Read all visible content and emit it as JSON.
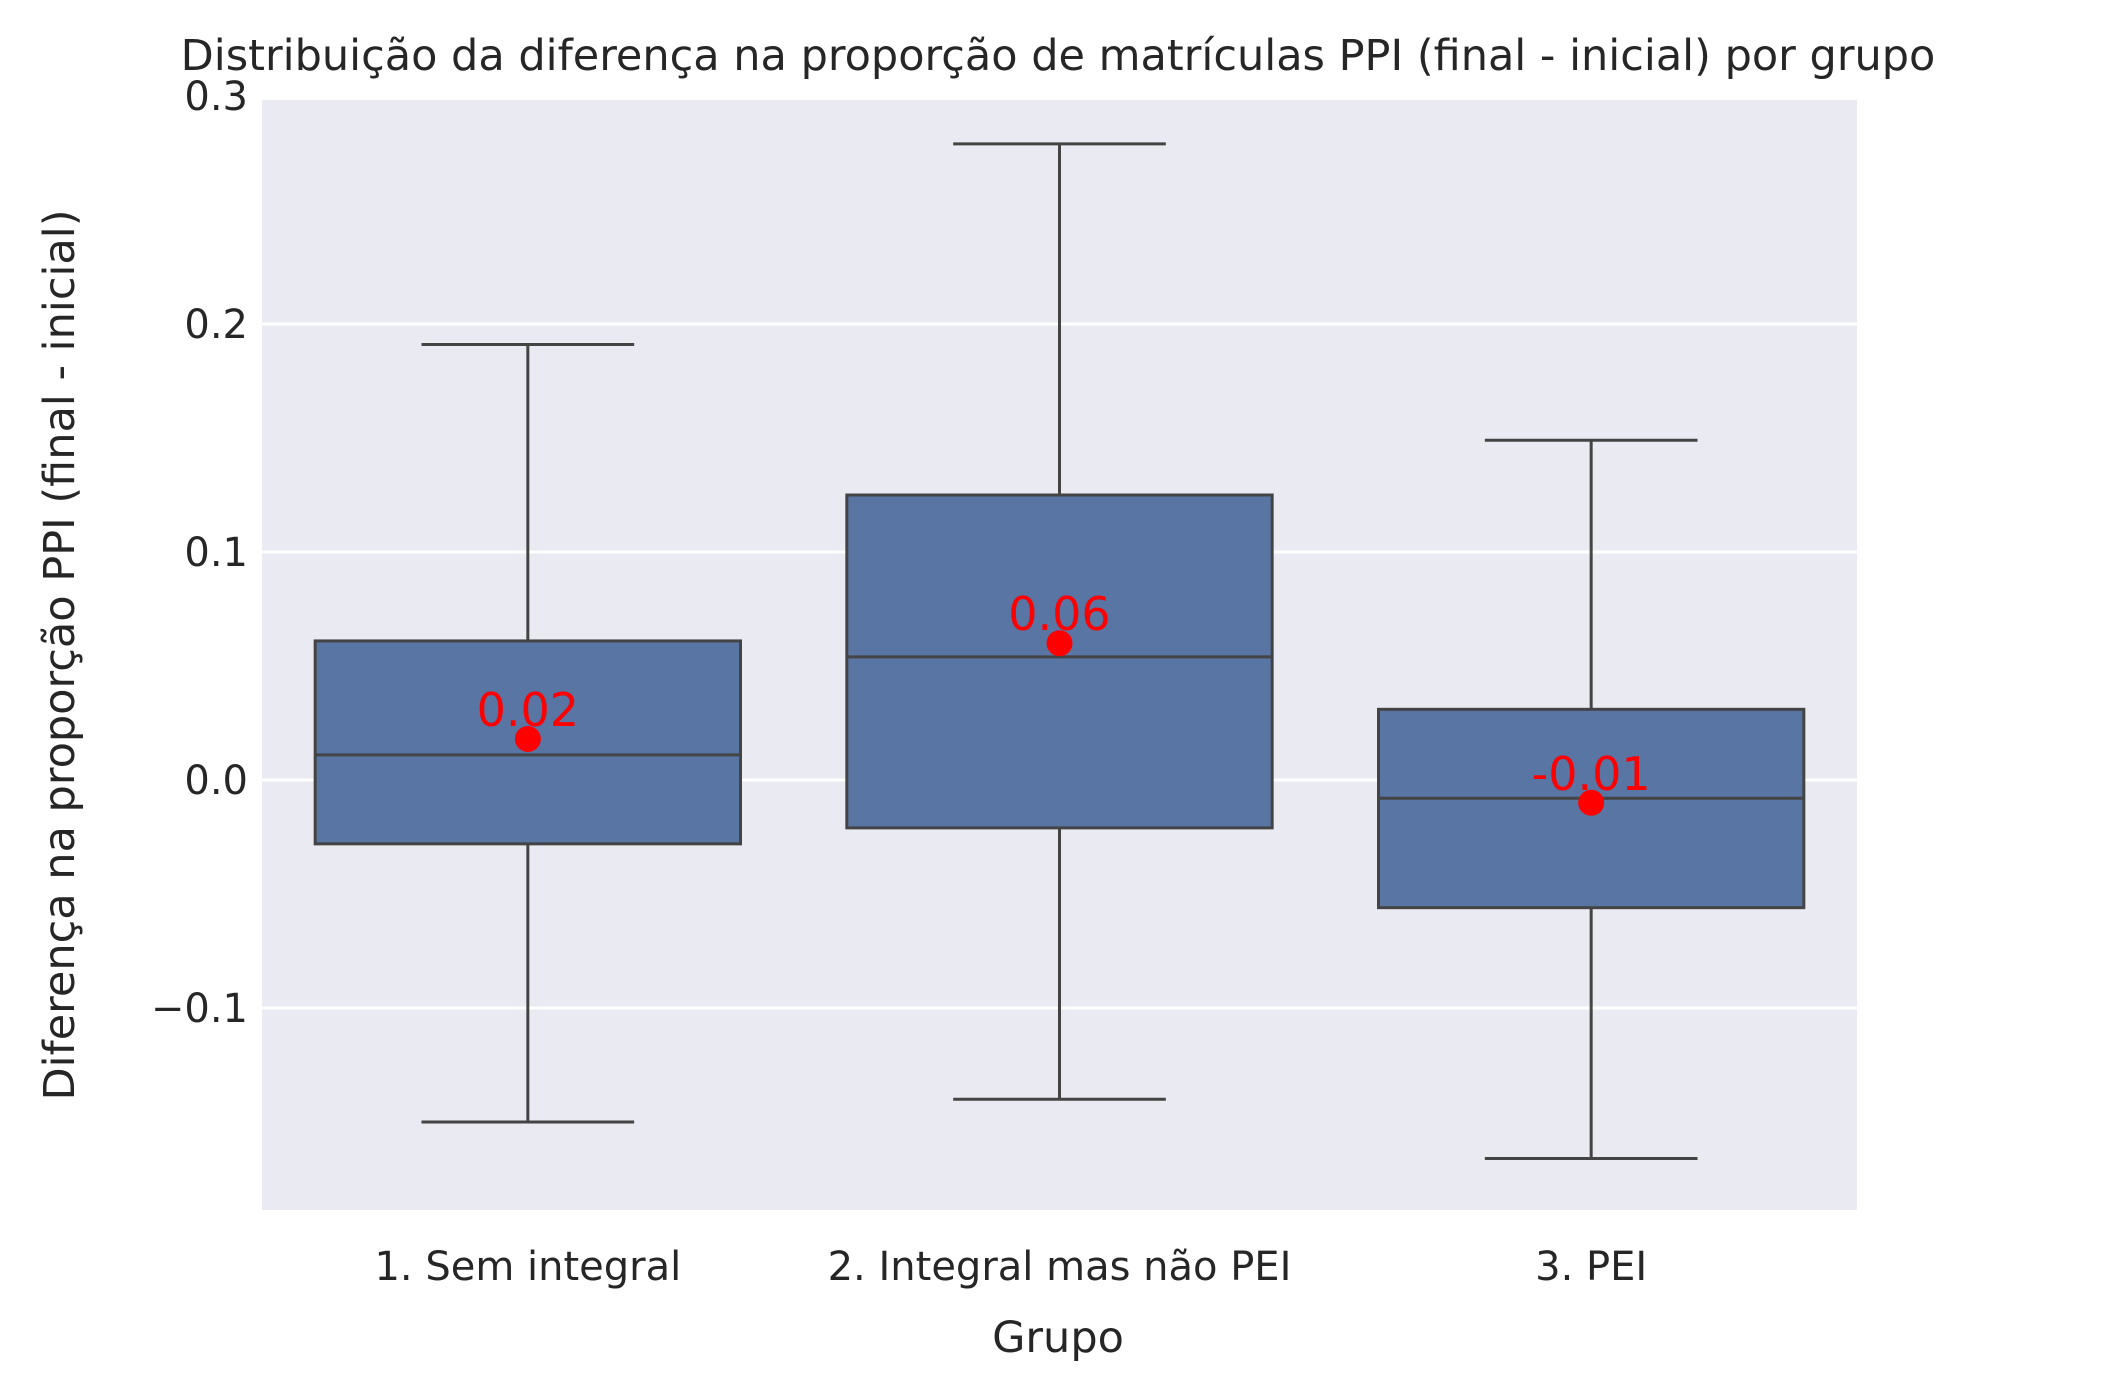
{
  "chart_data": {
    "type": "box",
    "title": "Distribuição da diferença na proporção de matrículas PPI (final - inicial) por grupo",
    "xlabel": "Grupo",
    "ylabel": "Diferença na proporção PPI (final - inicial)",
    "ylim": [
      -0.19,
      0.3
    ],
    "yticks": [
      -0.1,
      0.0,
      0.1,
      0.2,
      0.3
    ],
    "ytick_labels": [
      "−0.1",
      "0.0",
      "0.1",
      "0.2",
      "0.3"
    ],
    "grid": true,
    "categories": [
      "1. Sem integral",
      "2. Integral mas não PEI",
      "3. PEI"
    ],
    "boxes": [
      {
        "whisker_low": -0.15,
        "q1": -0.028,
        "median": 0.011,
        "q3": 0.061,
        "whisker_high": 0.191
      },
      {
        "whisker_low": -0.14,
        "q1": -0.021,
        "median": 0.054,
        "q3": 0.125,
        "whisker_high": 0.279
      },
      {
        "whisker_low": -0.166,
        "q1": -0.056,
        "median": -0.008,
        "q3": 0.031,
        "whisker_high": 0.149
      }
    ],
    "means": [
      0.018,
      0.06,
      -0.01
    ],
    "mean_labels": [
      "0.02",
      "0.06",
      "-0.01"
    ],
    "colors": {
      "box_fill": "#5875a4",
      "box_edge": "#444444",
      "mean_marker": "#ff0000",
      "plot_bg": "#eaeaf2",
      "grid": "#ffffff"
    }
  }
}
